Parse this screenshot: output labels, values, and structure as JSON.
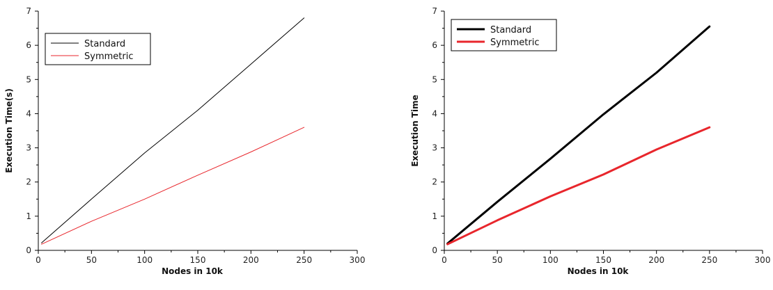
{
  "chart_data": [
    {
      "type": "line",
      "title": "",
      "xlabel": "Nodes  in 10k",
      "ylabel": "Execution Time(s)",
      "xlim": [
        0,
        300
      ],
      "ylim": [
        0,
        7
      ],
      "xticks": [
        0,
        50,
        100,
        150,
        200,
        250,
        300
      ],
      "yticks": [
        0,
        1,
        2,
        3,
        4,
        5,
        6,
        7
      ],
      "grid": false,
      "legend": "top-left",
      "x": [
        3,
        50,
        100,
        150,
        200,
        250
      ],
      "series": [
        {
          "name": "Standard",
          "color": "#000000",
          "values": [
            0.22,
            1.5,
            2.85,
            4.1,
            5.45,
            6.8
          ]
        },
        {
          "name": "Symmetric",
          "color": "#e8262c",
          "values": [
            0.18,
            0.85,
            1.5,
            2.2,
            2.88,
            3.6
          ]
        }
      ]
    },
    {
      "type": "line",
      "title": "",
      "xlabel": "Nodes in 10k",
      "ylabel": "Execution Time",
      "xlim": [
        0,
        300
      ],
      "ylim": [
        0,
        7
      ],
      "xticks": [
        0,
        50,
        100,
        150,
        200,
        250,
        300
      ],
      "yticks": [
        0,
        1,
        2,
        3,
        4,
        5,
        6,
        7
      ],
      "grid": false,
      "legend": "top-left",
      "x": [
        3,
        50,
        100,
        150,
        200,
        250
      ],
      "series": [
        {
          "name": "Standard",
          "color": "#000000",
          "values": [
            0.2,
            1.42,
            2.68,
            3.98,
            5.2,
            6.55
          ]
        },
        {
          "name": "Symmetric",
          "color": "#e8262c",
          "values": [
            0.18,
            0.88,
            1.58,
            2.22,
            2.95,
            3.6
          ]
        }
      ]
    }
  ]
}
